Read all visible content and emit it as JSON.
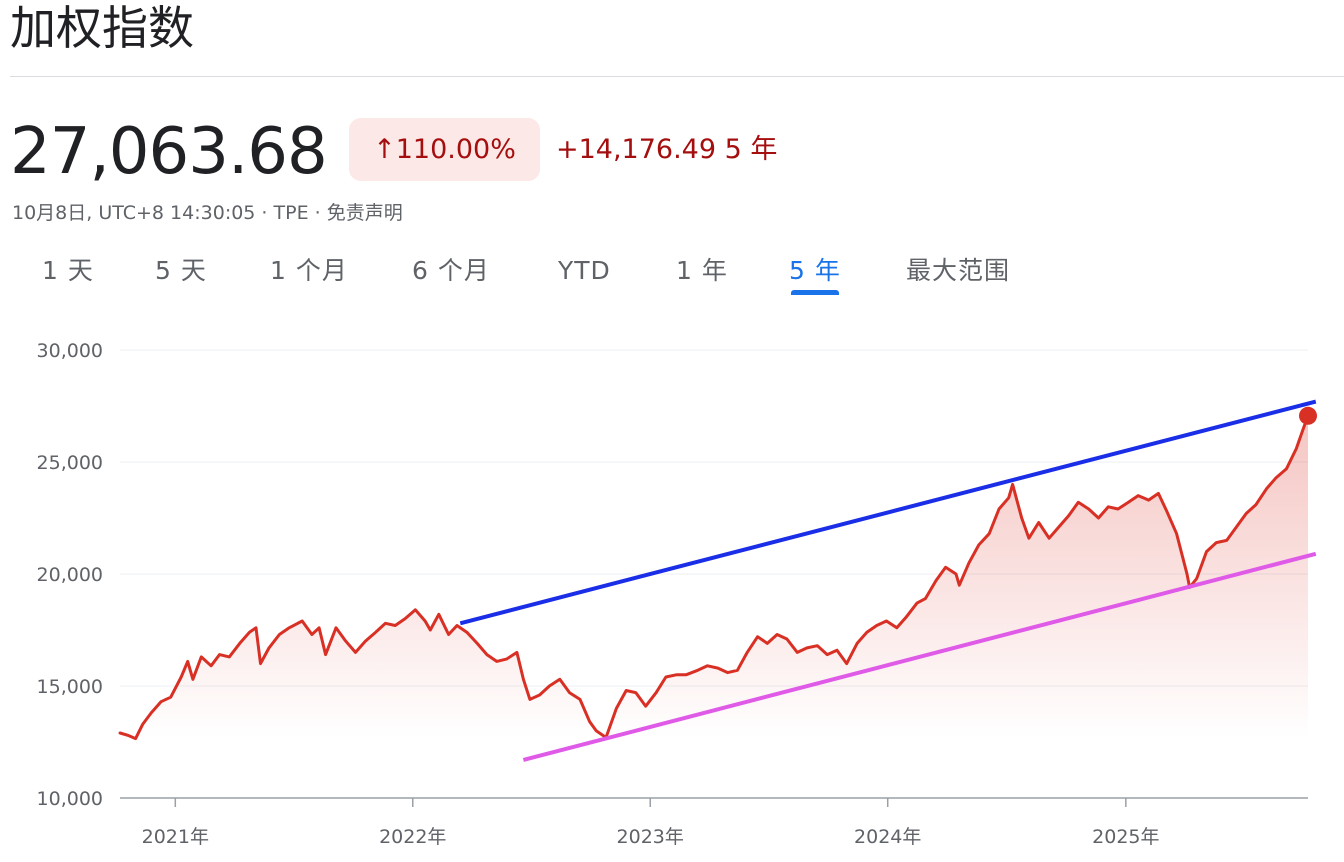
{
  "header": {
    "title": "加权指数",
    "price": "27,063.68",
    "pct_change": "↑110.00%",
    "abs_change": "+14,176.49 5 年",
    "meta": "10月8日, UTC+8 14:30:05 · TPE · 免责声明"
  },
  "tabs": [
    {
      "label": "1 天",
      "active": false
    },
    {
      "label": "5 天",
      "active": false
    },
    {
      "label": "1 个月",
      "active": false
    },
    {
      "label": "6 个月",
      "active": false
    },
    {
      "label": "YTD",
      "active": false
    },
    {
      "label": "1 年",
      "active": false
    },
    {
      "label": "5 年",
      "active": true
    },
    {
      "label": "最大范围",
      "active": false
    }
  ],
  "colors": {
    "line": "#d93025",
    "up_text": "#a50e0e",
    "badge_bg": "#fce8e6",
    "active_tab": "#1a73e8",
    "trend_upper": "#1a2ee8",
    "trend_lower": "#e05ae8"
  },
  "chart_data": {
    "type": "area",
    "ylim": [
      10000,
      30000
    ],
    "yticks": [
      10000,
      15000,
      20000,
      25000,
      30000
    ],
    "ytick_labels": [
      "10,000",
      "15,000",
      "20,000",
      "25,000",
      "30,000"
    ],
    "xlim": [
      "2020-10-08",
      "2025-10-08"
    ],
    "xticks": [
      "2021-01-01",
      "2022-01-01",
      "2023-01-01",
      "2024-01-01",
      "2025-01-01"
    ],
    "xtick_labels": [
      "2021年",
      "2022年",
      "2023年",
      "2024年",
      "2025年"
    ],
    "grid": true,
    "series": [
      {
        "points": [
          [
            "2020-10-08",
            12900
          ],
          [
            "2020-10-20",
            12800
          ],
          [
            "2020-11-01",
            12650
          ],
          [
            "2020-11-12",
            13300
          ],
          [
            "2020-11-25",
            13800
          ],
          [
            "2020-12-10",
            14300
          ],
          [
            "2020-12-25",
            14500
          ],
          [
            "2021-01-10",
            15400
          ],
          [
            "2021-01-20",
            16100
          ],
          [
            "2021-01-28",
            15300
          ],
          [
            "2021-02-10",
            16300
          ],
          [
            "2021-02-25",
            15900
          ],
          [
            "2021-03-10",
            16400
          ],
          [
            "2021-03-25",
            16300
          ],
          [
            "2021-04-10",
            16900
          ],
          [
            "2021-04-25",
            17400
          ],
          [
            "2021-05-05",
            17600
          ],
          [
            "2021-05-12",
            16000
          ],
          [
            "2021-05-25",
            16700
          ],
          [
            "2021-06-10",
            17300
          ],
          [
            "2021-06-25",
            17600
          ],
          [
            "2021-07-15",
            17900
          ],
          [
            "2021-07-30",
            17300
          ],
          [
            "2021-08-10",
            17600
          ],
          [
            "2021-08-20",
            16400
          ],
          [
            "2021-09-05",
            17600
          ],
          [
            "2021-09-20",
            17000
          ],
          [
            "2021-10-05",
            16500
          ],
          [
            "2021-10-20",
            17000
          ],
          [
            "2021-11-05",
            17400
          ],
          [
            "2021-11-20",
            17800
          ],
          [
            "2021-12-05",
            17700
          ],
          [
            "2021-12-20",
            18000
          ],
          [
            "2022-01-05",
            18400
          ],
          [
            "2022-01-20",
            17900
          ],
          [
            "2022-01-28",
            17500
          ],
          [
            "2022-02-10",
            18200
          ],
          [
            "2022-02-25",
            17300
          ],
          [
            "2022-03-10",
            17700
          ],
          [
            "2022-03-25",
            17400
          ],
          [
            "2022-04-10",
            16900
          ],
          [
            "2022-04-25",
            16400
          ],
          [
            "2022-05-10",
            16100
          ],
          [
            "2022-05-25",
            16200
          ],
          [
            "2022-06-10",
            16500
          ],
          [
            "2022-06-20",
            15300
          ],
          [
            "2022-06-30",
            14400
          ],
          [
            "2022-07-15",
            14600
          ],
          [
            "2022-07-30",
            15000
          ],
          [
            "2022-08-15",
            15300
          ],
          [
            "2022-08-30",
            14700
          ],
          [
            "2022-09-15",
            14400
          ],
          [
            "2022-09-30",
            13400
          ],
          [
            "2022-10-10",
            13000
          ],
          [
            "2022-10-25",
            12700
          ],
          [
            "2022-11-10",
            14000
          ],
          [
            "2022-11-25",
            14800
          ],
          [
            "2022-12-10",
            14700
          ],
          [
            "2022-12-25",
            14100
          ],
          [
            "2023-01-10",
            14700
          ],
          [
            "2023-01-25",
            15400
          ],
          [
            "2023-02-10",
            15500
          ],
          [
            "2023-02-25",
            15500
          ],
          [
            "2023-03-15",
            15700
          ],
          [
            "2023-03-30",
            15900
          ],
          [
            "2023-04-15",
            15800
          ],
          [
            "2023-04-30",
            15600
          ],
          [
            "2023-05-15",
            15700
          ],
          [
            "2023-05-30",
            16500
          ],
          [
            "2023-06-15",
            17200
          ],
          [
            "2023-06-30",
            16900
          ],
          [
            "2023-07-15",
            17300
          ],
          [
            "2023-07-30",
            17100
          ],
          [
            "2023-08-15",
            16500
          ],
          [
            "2023-08-30",
            16700
          ],
          [
            "2023-09-15",
            16800
          ],
          [
            "2023-09-30",
            16400
          ],
          [
            "2023-10-15",
            16600
          ],
          [
            "2023-10-30",
            16000
          ],
          [
            "2023-11-15",
            16900
          ],
          [
            "2023-11-30",
            17400
          ],
          [
            "2023-12-15",
            17700
          ],
          [
            "2023-12-30",
            17900
          ],
          [
            "2024-01-15",
            17600
          ],
          [
            "2024-01-30",
            18100
          ],
          [
            "2024-02-15",
            18700
          ],
          [
            "2024-02-28",
            18900
          ],
          [
            "2024-03-15",
            19700
          ],
          [
            "2024-03-30",
            20300
          ],
          [
            "2024-04-15",
            20000
          ],
          [
            "2024-04-20",
            19500
          ],
          [
            "2024-05-05",
            20500
          ],
          [
            "2024-05-20",
            21300
          ],
          [
            "2024-06-05",
            21800
          ],
          [
            "2024-06-20",
            22900
          ],
          [
            "2024-07-05",
            23400
          ],
          [
            "2024-07-11",
            24000
          ],
          [
            "2024-07-25",
            22500
          ],
          [
            "2024-08-05",
            21600
          ],
          [
            "2024-08-20",
            22300
          ],
          [
            "2024-09-05",
            21600
          ],
          [
            "2024-09-20",
            22100
          ],
          [
            "2024-10-05",
            22600
          ],
          [
            "2024-10-20",
            23200
          ],
          [
            "2024-11-05",
            22900
          ],
          [
            "2024-11-20",
            22500
          ],
          [
            "2024-12-05",
            23000
          ],
          [
            "2024-12-20",
            22900
          ],
          [
            "2025-01-05",
            23200
          ],
          [
            "2025-01-20",
            23500
          ],
          [
            "2025-02-05",
            23300
          ],
          [
            "2025-02-20",
            23600
          ],
          [
            "2025-03-05",
            22800
          ],
          [
            "2025-03-20",
            21800
          ],
          [
            "2025-04-05",
            20000
          ],
          [
            "2025-04-09",
            19400
          ],
          [
            "2025-04-20",
            19800
          ],
          [
            "2025-05-05",
            21000
          ],
          [
            "2025-05-20",
            21400
          ],
          [
            "2025-06-05",
            21500
          ],
          [
            "2025-06-20",
            22100
          ],
          [
            "2025-07-05",
            22700
          ],
          [
            "2025-07-20",
            23100
          ],
          [
            "2025-08-05",
            23800
          ],
          [
            "2025-08-20",
            24300
          ],
          [
            "2025-09-05",
            24700
          ],
          [
            "2025-09-20",
            25600
          ],
          [
            "2025-10-01",
            26500
          ],
          [
            "2025-10-08",
            27064
          ]
        ]
      }
    ],
    "annotations": [
      {
        "type": "trendline",
        "from": [
          "2022-03-15",
          17800
        ],
        "to": [
          "2025-10-20",
          27700
        ]
      },
      {
        "type": "trendline",
        "from": [
          "2022-06-20",
          11700
        ],
        "to": [
          "2025-10-20",
          20900
        ]
      }
    ]
  }
}
